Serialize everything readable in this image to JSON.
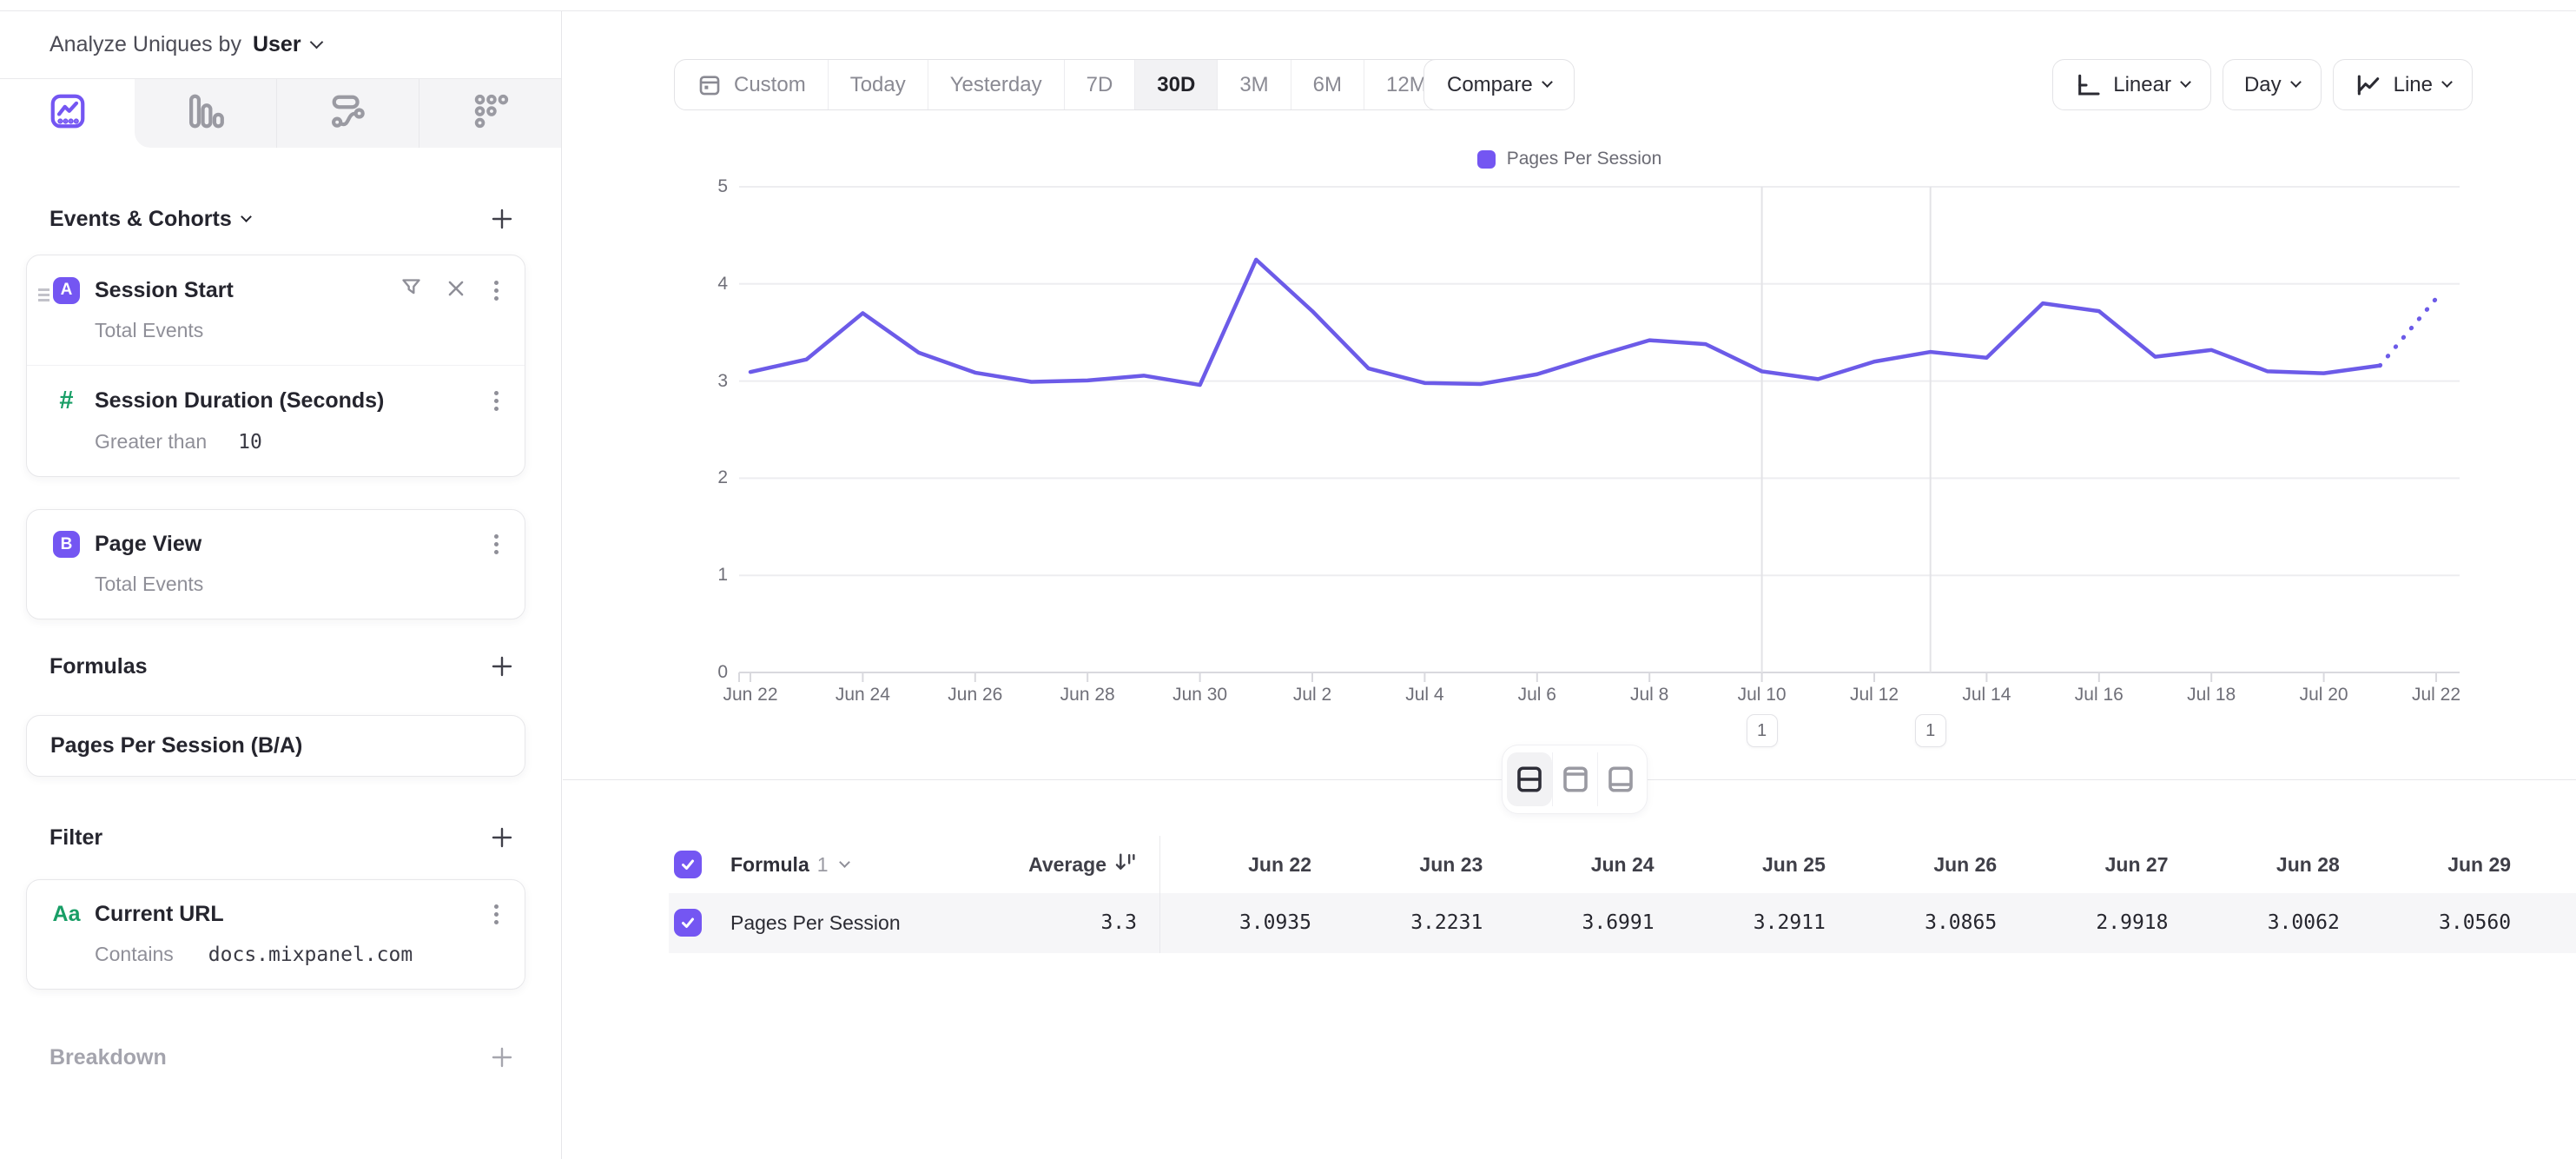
{
  "header": {
    "analyze_label": "Analyze Uniques by",
    "analyze_value": "User"
  },
  "sidebar": {
    "tabs": [
      "insights-tab",
      "funnels-tab",
      "flows-tab",
      "retention-tab"
    ],
    "events_title": "Events & Cohorts",
    "events": [
      {
        "letter": "A",
        "name": "Session Start",
        "measure": "Total Events",
        "filter": {
          "property": "Session Duration (Seconds)",
          "operator": "Greater than",
          "value": "10"
        }
      },
      {
        "letter": "B",
        "name": "Page View",
        "measure": "Total Events"
      }
    ],
    "formulas_title": "Formulas",
    "formula": "Pages Per Session (B/A)",
    "filter_title": "Filter",
    "filter": {
      "badge": "Aa",
      "name": "Current URL",
      "operator": "Contains",
      "value": "docs.mixpanel.com"
    },
    "breakdown_title": "Breakdown"
  },
  "toolbar": {
    "date_ranges": [
      "Custom",
      "Today",
      "Yesterday",
      "7D",
      "30D",
      "3M",
      "6M",
      "12M"
    ],
    "selected_range": "30D",
    "compare_label": "Compare",
    "scale_label": "Linear",
    "granularity_label": "Day",
    "chart_type_label": "Line"
  },
  "chart_data": {
    "type": "line",
    "title": "",
    "legend": [
      "Pages Per Session"
    ],
    "legend_position": "top",
    "grid": true,
    "ylim": [
      0,
      5
    ],
    "y_ticks": [
      0,
      1,
      2,
      3,
      4,
      5
    ],
    "x_tick_labels": [
      "Jun 22",
      "Jun 24",
      "Jun 26",
      "Jun 28",
      "Jun 30",
      "Jul 2",
      "Jul 4",
      "Jul 6",
      "Jul 8",
      "Jul 10",
      "Jul 12",
      "Jul 14",
      "Jul 16",
      "Jul 18",
      "Jul 20",
      "Jul 22"
    ],
    "series": [
      {
        "name": "Pages Per Session",
        "color": "#6C5BE8",
        "projected_last_segment": true,
        "x": [
          "Jun 22",
          "Jun 23",
          "Jun 24",
          "Jun 25",
          "Jun 26",
          "Jun 27",
          "Jun 28",
          "Jun 29",
          "Jun 30",
          "Jul 1",
          "Jul 2",
          "Jul 3",
          "Jul 4",
          "Jul 5",
          "Jul 6",
          "Jul 7",
          "Jul 8",
          "Jul 9",
          "Jul 10",
          "Jul 11",
          "Jul 12",
          "Jul 13",
          "Jul 14",
          "Jul 15",
          "Jul 16",
          "Jul 17",
          "Jul 18",
          "Jul 19",
          "Jul 20",
          "Jul 21",
          "Jul 22"
        ],
        "values": [
          3.0935,
          3.2231,
          3.6991,
          3.2911,
          3.0865,
          2.9918,
          3.0062,
          3.056,
          2.96,
          4.25,
          3.72,
          3.13,
          2.98,
          2.97,
          3.07,
          3.25,
          3.42,
          3.38,
          3.1,
          3.02,
          3.2,
          3.3,
          3.24,
          3.8,
          3.72,
          3.25,
          3.32,
          3.1,
          3.08,
          3.16,
          3.85
        ]
      }
    ],
    "annotations": [
      {
        "label": "1",
        "x": "Jul 10"
      },
      {
        "label": "1",
        "x": "Jul 13"
      }
    ]
  },
  "table": {
    "series_label": "Formula",
    "series_index": "1",
    "avg_header": "Average",
    "date_columns": [
      "Jun 22",
      "Jun 23",
      "Jun 24",
      "Jun 25",
      "Jun 26",
      "Jun 27",
      "Jun 28",
      "Jun 29"
    ],
    "rows": [
      {
        "name": "Pages Per Session",
        "average": "3.3",
        "values": [
          "3.0935",
          "3.2231",
          "3.6991",
          "3.2911",
          "3.0865",
          "2.9918",
          "3.0062",
          "3.0560"
        ]
      }
    ]
  },
  "colors": {
    "accent": "#7456F2",
    "line": "#6C5BE8",
    "green": "#189E66"
  }
}
